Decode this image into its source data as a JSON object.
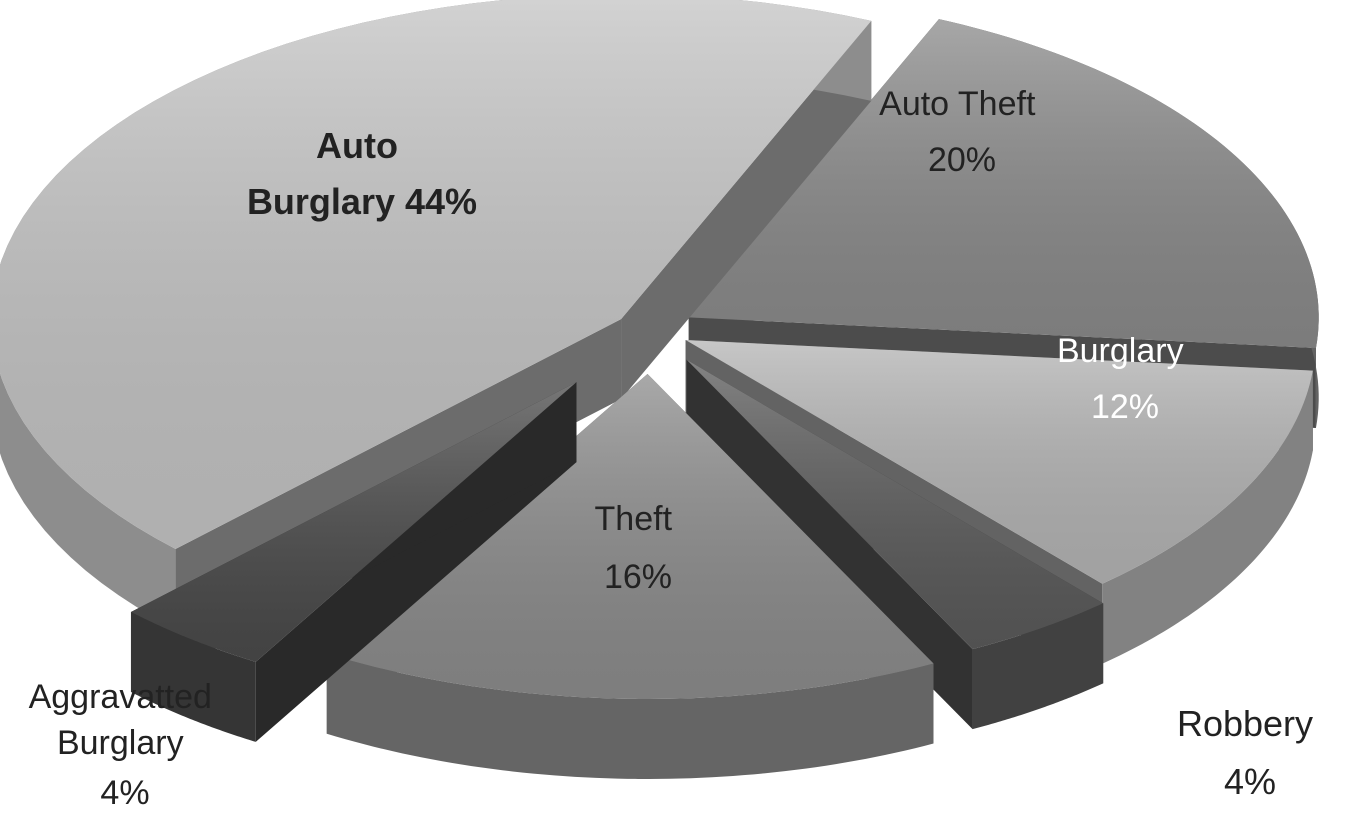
{
  "chart_data": {
    "type": "pie",
    "title": "",
    "legend": "none",
    "slices": [
      {
        "label": "Auto Burglary",
        "value": 44,
        "display": "44%",
        "color": "#c4c4c4"
      },
      {
        "label": "Auto Theft",
        "value": 20,
        "display": "20%",
        "color": "#8a8a8a"
      },
      {
        "label": "Burglary",
        "value": 12,
        "display": "12%",
        "color": "#b4b4b4"
      },
      {
        "label": "Robbery",
        "value": 4,
        "display": "4%",
        "color": "#5a5a5a"
      },
      {
        "label": "Theft",
        "value": 16,
        "display": "16%",
        "color": "#8c8c8c"
      },
      {
        "label": "Aggravatted Burglary",
        "value": 4,
        "display": "4%",
        "color": "#4a4a4a"
      }
    ]
  }
}
